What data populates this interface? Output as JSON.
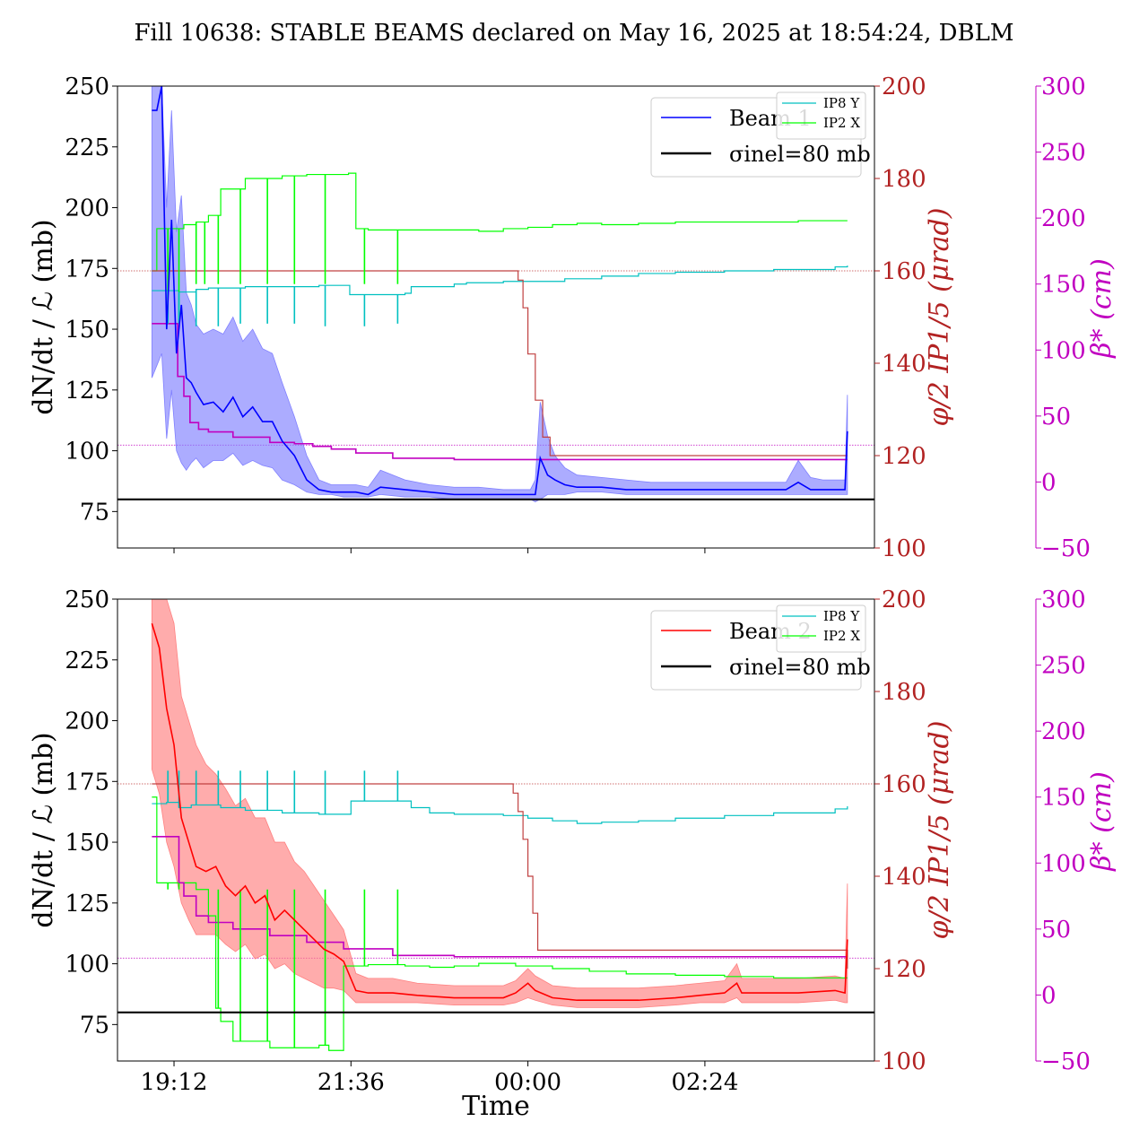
{
  "figure": {
    "title": "Fill 10638: STABLE BEAMS declared on May 16, 2025 at 18:54:24, DBLM",
    "xlabel": "Time"
  },
  "colors": {
    "beam1": "#0000ff",
    "beam1_band": "#8080ff",
    "beam2": "#ff0000",
    "beam2_band": "#ff8080",
    "ip8y": "#00c0c0",
    "ip2x": "#00ff00",
    "crossing": "#c04040",
    "crossing_axis": "#b22222",
    "beta": "#c000c0",
    "sigma": "#000000"
  },
  "chart_data": [
    {
      "type": "line",
      "panel": "top",
      "ylabel": "dN/dt / ℒ (mb)",
      "ylabel_right": "φ/2 IP1/5 (μrad)",
      "ylabel_right2": "β* (cm)",
      "x_ticks": [
        "19:12",
        "21:36",
        "00:00",
        "02:24"
      ],
      "x_tick_minutes": [
        1152,
        1296,
        1440,
        1584
      ],
      "xlim_minutes": [
        1106,
        1722
      ],
      "ylim": [
        60,
        250
      ],
      "y_ticks": [
        75,
        100,
        125,
        150,
        175,
        200,
        225,
        250
      ],
      "ylim_right": [
        100,
        200
      ],
      "y_ticks_right": [
        100,
        120,
        140,
        160,
        180,
        200
      ],
      "ylim_right2": [
        -50,
        300
      ],
      "y_ticks_right2": [
        -50,
        0,
        50,
        100,
        150,
        200,
        250,
        300
      ],
      "legend": {
        "placement": "upper-right",
        "entries": [
          "Beam 1",
          "σinel=80 mb"
        ]
      },
      "legend_small": {
        "placement": "upper-right",
        "entries": [
          "IP8 Y",
          "IP2 X"
        ]
      },
      "sigma_inel_mb": 80,
      "series": [
        {
          "name": "Beam 1",
          "key": "beam",
          "axis": "left",
          "x": [
            1134,
            1138,
            1142,
            1146,
            1150,
            1154,
            1158,
            1162,
            1166,
            1170,
            1176,
            1184,
            1192,
            1200,
            1208,
            1216,
            1224,
            1232,
            1240,
            1250,
            1260,
            1270,
            1280,
            1290,
            1300,
            1310,
            1320,
            1340,
            1360,
            1380,
            1400,
            1420,
            1438,
            1442,
            1446,
            1450,
            1456,
            1462,
            1470,
            1480,
            1500,
            1520,
            1540,
            1560,
            1580,
            1600,
            1630,
            1650,
            1660,
            1670,
            1680,
            1690,
            1698,
            1700
          ],
          "values": [
            240,
            240,
            250,
            150,
            195,
            140,
            160,
            130,
            128,
            124,
            119,
            120,
            116,
            122,
            114,
            118,
            112,
            112,
            104,
            98,
            88,
            84,
            83,
            83,
            83,
            82,
            85,
            84,
            83,
            82,
            82,
            82,
            82,
            82,
            82,
            97,
            90,
            88,
            86,
            85,
            85,
            84,
            84,
            84,
            84,
            84,
            84,
            84,
            87,
            84,
            84,
            84,
            84,
            108
          ],
          "band_low": [
            130,
            135,
            140,
            105,
            125,
            100,
            95,
            92,
            95,
            97,
            93,
            96,
            96,
            99,
            94,
            96,
            94,
            93,
            88,
            86,
            83,
            82,
            82,
            81,
            81,
            81,
            82,
            81,
            81,
            80,
            80,
            80,
            80,
            80,
            79,
            80,
            82,
            82,
            82,
            83,
            83,
            82,
            82,
            82,
            82,
            82,
            82,
            82,
            82,
            82,
            82,
            82,
            82,
            82
          ],
          "band_high": [
            250,
            250,
            250,
            200,
            240,
            190,
            205,
            165,
            160,
            152,
            148,
            150,
            148,
            155,
            145,
            150,
            142,
            140,
            128,
            114,
            98,
            88,
            86,
            86,
            86,
            85,
            92,
            88,
            86,
            85,
            85,
            84,
            84,
            84,
            88,
            120,
            106,
            98,
            93,
            90,
            89,
            88,
            87,
            87,
            87,
            87,
            87,
            87,
            96,
            89,
            88,
            88,
            88,
            123
          ]
        },
        {
          "name": "IP8 Y",
          "key": "ip8y",
          "axis": "right2",
          "x": [
            1134,
            1146,
            1156,
            1170,
            1180,
            1190,
            1210,
            1240,
            1260,
            1270,
            1276,
            1295,
            1310,
            1320,
            1340,
            1345,
            1380,
            1390,
            1420,
            1440,
            1470,
            1500,
            1530,
            1560,
            1600,
            1640,
            1690,
            1700
          ],
          "values": [
            145,
            145,
            144,
            146,
            147,
            147,
            148,
            148,
            148,
            149,
            149,
            142,
            142,
            142,
            143,
            148,
            150,
            151,
            152,
            152,
            154,
            156,
            158,
            159,
            160,
            161,
            163,
            164
          ]
        },
        {
          "name": "IP2 X",
          "key": "ip2x",
          "axis": "right2",
          "x": [
            1134,
            1138,
            1150,
            1160,
            1170,
            1180,
            1190,
            1210,
            1240,
            1260,
            1280,
            1294,
            1300,
            1310,
            1340,
            1360,
            1380,
            1400,
            1420,
            1440,
            1460,
            1480,
            1500,
            1530,
            1560,
            1580,
            1600,
            1620,
            1640,
            1660,
            1680,
            1700
          ],
          "values": [
            160,
            192,
            192,
            195,
            197,
            202,
            222,
            230,
            232,
            233,
            233,
            234,
            192,
            191,
            191,
            191,
            191,
            190,
            192,
            193,
            195,
            196,
            195,
            196,
            197,
            197,
            197,
            197,
            197,
            198,
            198,
            198
          ]
        },
        {
          "name": "φ/2 IP1/5",
          "key": "crossing",
          "axis": "right",
          "x": [
            1134,
            1200,
            1250,
            1300,
            1400,
            1430,
            1432,
            1436,
            1440,
            1446,
            1452,
            1458,
            1700
          ],
          "values": [
            160,
            160,
            160,
            160,
            160,
            160,
            158,
            152,
            142,
            132,
            124,
            120,
            120
          ]
        },
        {
          "name": "β*",
          "key": "beta",
          "axis": "right2",
          "x": [
            1134,
            1150,
            1155,
            1160,
            1165,
            1172,
            1180,
            1200,
            1230,
            1250,
            1265,
            1280,
            1300,
            1330,
            1380,
            1440,
            1500,
            1580,
            1650,
            1700
          ],
          "values": [
            120,
            120,
            80,
            65,
            45,
            40,
            38,
            34,
            30,
            29,
            27,
            25,
            22,
            18,
            17,
            17,
            17,
            17,
            17,
            17
          ]
        }
      ],
      "dips": {
        "ip2x": {
          "x": [
            1147,
            1156,
            1170,
            1177,
            1188,
            1206,
            1228,
            1250,
            1275,
            1307,
            1334
          ],
          "to": [
            120,
            120,
            150,
            150,
            150,
            150,
            150,
            150,
            150,
            150,
            150
          ]
        },
        "ip8y": {
          "x": [
            1147,
            1156,
            1170,
            1188,
            1206,
            1228,
            1250,
            1275,
            1307,
            1334
          ],
          "to": [
            120,
            120,
            118,
            118,
            120,
            120,
            120,
            118,
            118,
            120
          ]
        }
      },
      "refs": {
        "crossing": 160,
        "beta": 28
      }
    },
    {
      "type": "line",
      "panel": "bottom",
      "ylabel": "dN/dt / ℒ (mb)",
      "ylabel_right": "φ/2 IP1/5 (μrad)",
      "ylabel_right2": "β* (cm)",
      "x_ticks": [
        "19:12",
        "21:36",
        "00:00",
        "02:24"
      ],
      "x_tick_minutes": [
        1152,
        1296,
        1440,
        1584
      ],
      "xlim_minutes": [
        1106,
        1722
      ],
      "ylim": [
        60,
        250
      ],
      "y_ticks": [
        75,
        100,
        125,
        150,
        175,
        200,
        225,
        250
      ],
      "ylim_right": [
        100,
        200
      ],
      "y_ticks_right": [
        100,
        120,
        140,
        160,
        180,
        200
      ],
      "ylim_right2": [
        -50,
        300
      ],
      "y_ticks_right2": [
        -50,
        0,
        50,
        100,
        150,
        200,
        250,
        300
      ],
      "legend": {
        "placement": "upper-right",
        "entries": [
          "Beam 2",
          "σinel=80 mb"
        ]
      },
      "legend_small": {
        "placement": "upper-right",
        "entries": [
          "IP8 Y",
          "IP2 X"
        ]
      },
      "sigma_inel_mb": 80,
      "series": [
        {
          "name": "Beam 2",
          "key": "beam",
          "axis": "left",
          "x": [
            1134,
            1140,
            1146,
            1152,
            1158,
            1164,
            1170,
            1178,
            1186,
            1194,
            1202,
            1210,
            1218,
            1226,
            1234,
            1242,
            1250,
            1258,
            1266,
            1274,
            1282,
            1290,
            1300,
            1310,
            1330,
            1350,
            1380,
            1400,
            1420,
            1430,
            1440,
            1446,
            1460,
            1480,
            1500,
            1530,
            1560,
            1580,
            1600,
            1610,
            1614,
            1630,
            1660,
            1690,
            1698,
            1700
          ],
          "values": [
            240,
            230,
            205,
            190,
            160,
            150,
            140,
            138,
            140,
            132,
            128,
            132,
            125,
            128,
            118,
            122,
            118,
            114,
            110,
            106,
            104,
            101,
            89,
            88,
            88,
            87,
            86,
            86,
            86,
            88,
            92,
            89,
            86,
            85,
            85,
            85,
            86,
            87,
            88,
            92,
            88,
            88,
            88,
            89,
            88,
            110
          ],
          "band_low": [
            180,
            170,
            150,
            140,
            125,
            118,
            112,
            112,
            112,
            108,
            105,
            108,
            102,
            104,
            98,
            100,
            96,
            94,
            92,
            90,
            90,
            89,
            84,
            84,
            84,
            84,
            83,
            83,
            83,
            84,
            86,
            85,
            83,
            82,
            82,
            82,
            83,
            84,
            84,
            86,
            84,
            84,
            84,
            85,
            84,
            84
          ],
          "band_high": [
            250,
            250,
            250,
            240,
            210,
            200,
            190,
            182,
            178,
            172,
            165,
            168,
            160,
            160,
            150,
            150,
            142,
            138,
            132,
            126,
            120,
            114,
            96,
            94,
            94,
            92,
            91,
            91,
            91,
            93,
            98,
            95,
            91,
            90,
            90,
            90,
            91,
            92,
            93,
            100,
            94,
            94,
            94,
            95,
            94,
            133
          ]
        },
        {
          "name": "IP8 Y",
          "key": "ip8y",
          "axis": "right2",
          "x": [
            1134,
            1146,
            1156,
            1166,
            1178,
            1190,
            1210,
            1240,
            1270,
            1296,
            1340,
            1345,
            1360,
            1380,
            1420,
            1440,
            1460,
            1480,
            1500,
            1530,
            1560,
            1600,
            1640,
            1690,
            1700
          ],
          "values": [
            145,
            146,
            142,
            144,
            144,
            142,
            140,
            138,
            137,
            147,
            147,
            142,
            138,
            137,
            136,
            134,
            132,
            130,
            131,
            132,
            134,
            136,
            138,
            141,
            143
          ]
        },
        {
          "name": "IP2 X",
          "key": "ip2x",
          "axis": "right2",
          "x": [
            1134,
            1138,
            1150,
            1160,
            1170,
            1180,
            1186,
            1190,
            1200,
            1230,
            1250,
            1270,
            1278,
            1290,
            1310,
            1340,
            1360,
            1380,
            1400,
            1430,
            1460,
            1490,
            1520,
            1560,
            1600,
            1640,
            1700
          ],
          "values": [
            150,
            85,
            85,
            85,
            80,
            60,
            -10,
            -20,
            -35,
            -40,
            -40,
            -38,
            -42,
            22,
            23,
            22,
            21,
            22,
            24,
            22,
            20,
            18,
            16,
            15,
            14,
            13,
            13
          ]
        },
        {
          "name": "φ/2 IP1/5",
          "key": "crossing",
          "axis": "right",
          "x": [
            1134,
            1200,
            1250,
            1300,
            1400,
            1424,
            1428,
            1432,
            1436,
            1440,
            1444,
            1448,
            1700
          ],
          "values": [
            160,
            160,
            160,
            160,
            160,
            160,
            158,
            154,
            148,
            140,
            132,
            124,
            120
          ]
        },
        {
          "name": "β*",
          "key": "beta",
          "axis": "right2",
          "x": [
            1134,
            1150,
            1156,
            1160,
            1170,
            1180,
            1200,
            1230,
            1260,
            1290,
            1330,
            1380,
            1700
          ],
          "values": [
            120,
            120,
            85,
            75,
            60,
            55,
            50,
            45,
            40,
            35,
            30,
            29,
            29
          ]
        }
      ],
      "dips": {
        "ip2x": {
          "x": [
            1147,
            1156,
            1170,
            1188,
            1206,
            1228,
            1250,
            1275,
            1307,
            1334
          ],
          "to": [
            80,
            80,
            80,
            80,
            80,
            80,
            80,
            80,
            80,
            80
          ]
        },
        "ip8y": {
          "x": [
            1147,
            1156,
            1170,
            1188,
            1206,
            1228,
            1250,
            1275,
            1307,
            1334
          ],
          "to": [
            170,
            170,
            170,
            170,
            170,
            170,
            170,
            170,
            170,
            170
          ]
        }
      },
      "refs": {
        "crossing": 160,
        "beta": 28
      }
    }
  ]
}
